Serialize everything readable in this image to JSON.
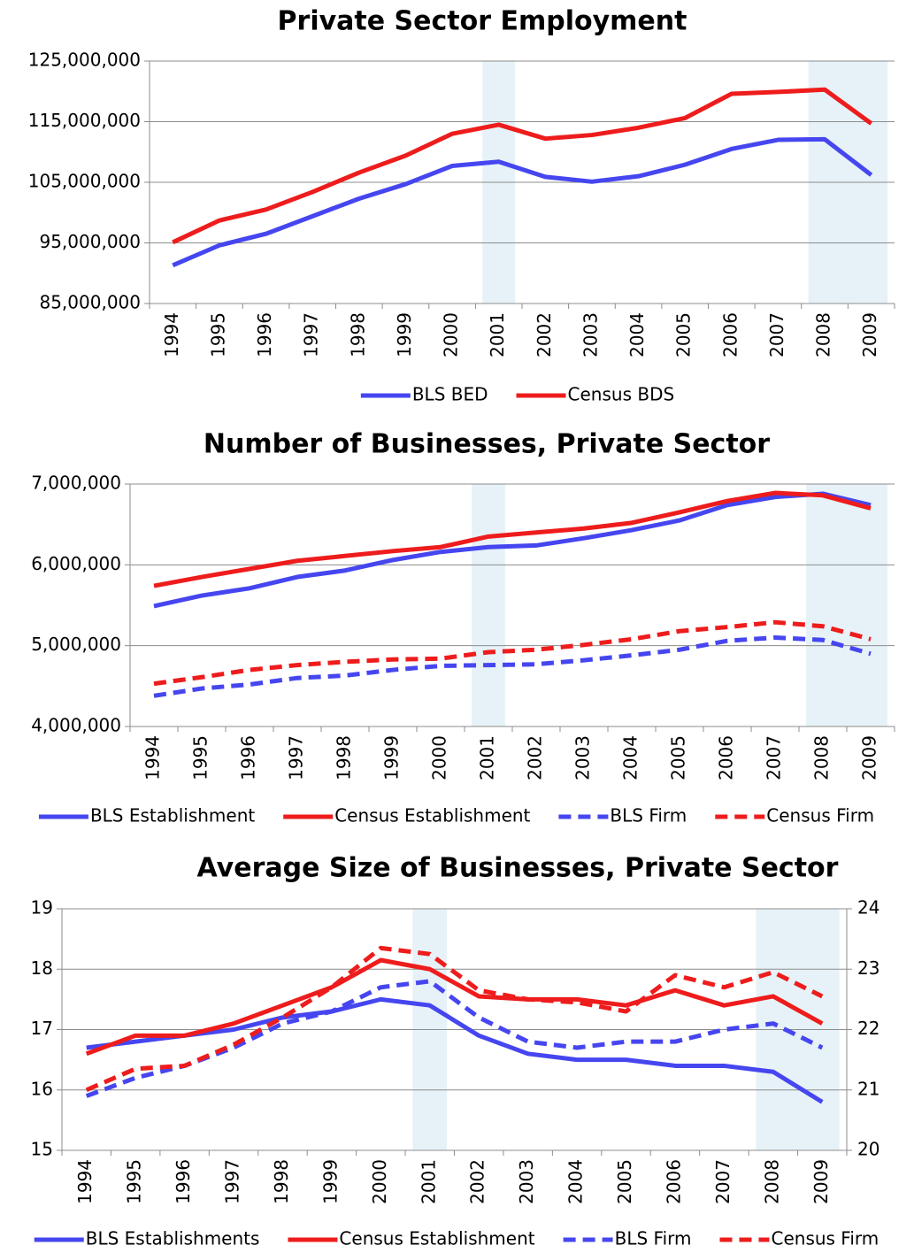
{
  "chart_data": [
    {
      "type": "line",
      "title": "Private Sector Employment",
      "categories": [
        "1994",
        "1995",
        "1996",
        "1997",
        "1998",
        "1999",
        "2000",
        "2001",
        "2002",
        "2003",
        "2004",
        "2005",
        "2006",
        "2007",
        "2008",
        "2009"
      ],
      "series": [
        {
          "name": "BLS BED",
          "color": "#4646f0",
          "dashed": false,
          "values": [
            91300000,
            94600000,
            96500000,
            99400000,
            102300000,
            104700000,
            107700000,
            108400000,
            105900000,
            105100000,
            106000000,
            107900000,
            110500000,
            112000000,
            112100000,
            106200000
          ]
        },
        {
          "name": "Census BDS",
          "color": "#ee1c1c",
          "dashed": false,
          "values": [
            95100000,
            98700000,
            100500000,
            103400000,
            106600000,
            109400000,
            113000000,
            114500000,
            112200000,
            112800000,
            114000000,
            115600000,
            119600000,
            119900000,
            120300000,
            114700000
          ]
        }
      ],
      "ylim": [
        85000000,
        125000000
      ],
      "yticks": [
        {
          "value": 85000000,
          "label": "85,000,000"
        },
        {
          "value": 95000000,
          "label": "95,000,000"
        },
        {
          "value": 105000000,
          "label": "105,000,000"
        },
        {
          "value": 115000000,
          "label": "115,000,000"
        },
        {
          "value": 125000000,
          "label": "125,000,000"
        }
      ],
      "grid": true,
      "shading": [
        [
          "2001",
          "2001"
        ],
        [
          "2008",
          "2009"
        ]
      ]
    },
    {
      "type": "line",
      "title": "Number of Businesses, Private Sector",
      "categories": [
        "1994",
        "1995",
        "1996",
        "1997",
        "1998",
        "1999",
        "2000",
        "2001",
        "2002",
        "2003",
        "2004",
        "2005",
        "2006",
        "2007",
        "2008",
        "2009"
      ],
      "series": [
        {
          "name": "BLS Establishment",
          "color": "#4646f0",
          "dashed": false,
          "values": [
            5490000,
            5620000,
            5710000,
            5850000,
            5930000,
            6060000,
            6160000,
            6220000,
            6240000,
            6330000,
            6430000,
            6550000,
            6740000,
            6840000,
            6880000,
            6740000
          ]
        },
        {
          "name": "Census Establishment",
          "color": "#ee1c1c",
          "dashed": false,
          "values": [
            5740000,
            5850000,
            5950000,
            6050000,
            6110000,
            6170000,
            6220000,
            6350000,
            6400000,
            6450000,
            6520000,
            6650000,
            6790000,
            6890000,
            6860000,
            6700000
          ]
        },
        {
          "name": "BLS Firm",
          "color": "#4646f0",
          "dashed": true,
          "values": [
            4380000,
            4470000,
            4520000,
            4600000,
            4630000,
            4700000,
            4750000,
            4760000,
            4770000,
            4820000,
            4880000,
            4950000,
            5060000,
            5100000,
            5070000,
            4900000
          ]
        },
        {
          "name": "Census Firm",
          "color": "#ee1c1c",
          "dashed": true,
          "values": [
            4530000,
            4610000,
            4700000,
            4760000,
            4800000,
            4830000,
            4840000,
            4920000,
            4950000,
            5010000,
            5080000,
            5180000,
            5230000,
            5290000,
            5240000,
            5080000
          ]
        }
      ],
      "ylim": [
        4000000,
        7000000
      ],
      "yticks": [
        {
          "value": 4000000,
          "label": "4,000,000"
        },
        {
          "value": 5000000,
          "label": "5,000,000"
        },
        {
          "value": 6000000,
          "label": "6,000,000"
        },
        {
          "value": 7000000,
          "label": "7,000,000"
        }
      ],
      "grid": true,
      "shading": [
        [
          "2001",
          "2001"
        ],
        [
          "2008",
          "2009"
        ]
      ]
    },
    {
      "type": "line",
      "title": "Average Size of Businesses, Private Sector",
      "categories": [
        "1994",
        "1995",
        "1996",
        "1997",
        "1998",
        "1999",
        "2000",
        "2001",
        "2002",
        "2003",
        "2004",
        "2005",
        "2006",
        "2007",
        "2008",
        "2009"
      ],
      "series": [
        {
          "name": "BLS Establishments",
          "color": "#4646f0",
          "dashed": false,
          "values": [
            16.7,
            16.8,
            16.9,
            17.0,
            17.2,
            17.3,
            17.5,
            17.4,
            16.9,
            16.6,
            16.5,
            16.5,
            16.4,
            16.4,
            16.3,
            15.8
          ]
        },
        {
          "name": "Census Establishment",
          "color": "#ee1c1c",
          "dashed": false,
          "values": [
            16.6,
            16.9,
            16.9,
            17.1,
            17.4,
            17.7,
            18.15,
            18.0,
            17.55,
            17.5,
            17.5,
            17.4,
            17.65,
            17.4,
            17.55,
            17.1
          ]
        },
        {
          "name": "BLS Firm",
          "color": "#4646f0",
          "dashed": true,
          "axis": "y2",
          "values": [
            20.9,
            21.2,
            21.4,
            21.7,
            22.1,
            22.3,
            22.7,
            22.8,
            22.2,
            21.8,
            21.7,
            21.8,
            21.8,
            22.0,
            22.1,
            21.7
          ]
        },
        {
          "name": "Census Firm",
          "color": "#ee1c1c",
          "dashed": true,
          "axis": "y2",
          "values": [
            21.0,
            21.35,
            21.4,
            21.75,
            22.2,
            22.7,
            23.35,
            23.25,
            22.65,
            22.5,
            22.45,
            22.3,
            22.9,
            22.7,
            22.95,
            22.55
          ]
        }
      ],
      "ylim": [
        15,
        19
      ],
      "yticks": [
        15,
        16,
        17,
        18,
        19
      ],
      "y2lim": [
        20,
        24
      ],
      "y2ticks": [
        20,
        21,
        22,
        23,
        24
      ],
      "grid": true,
      "shading": [
        [
          "2001",
          "2001"
        ],
        [
          "2008",
          "2009"
        ]
      ]
    }
  ]
}
